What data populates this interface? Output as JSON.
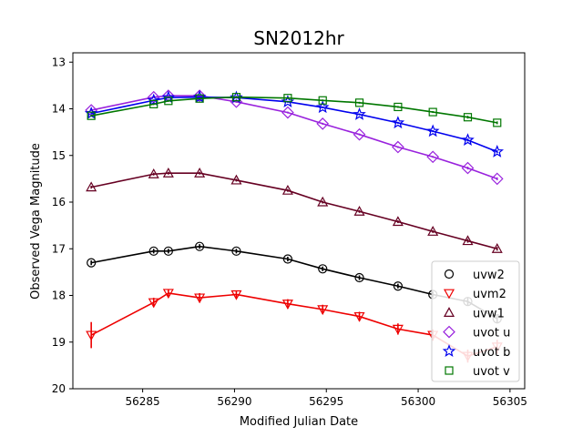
{
  "chart_data": {
    "type": "line",
    "title": "SN2012hr",
    "xlabel": "Modified Julian Date",
    "ylabel": "Observed Vega Magnitude",
    "xlim": [
      56281.2,
      56305.8
    ],
    "ylim": [
      20,
      12.8
    ],
    "y_inverted": true,
    "xticks": [
      56285,
      56290,
      56295,
      56300,
      56305
    ],
    "yticks": [
      13,
      14,
      15,
      16,
      17,
      18,
      19,
      20
    ],
    "grid": false,
    "legend_position": "bottom-right",
    "series": [
      {
        "name": "uvw2",
        "color": "#000000",
        "marker": "circle",
        "x": [
          56282.2,
          56285.6,
          56286.4,
          56288.1,
          56290.1,
          56292.9,
          56294.8,
          56296.8,
          56298.9,
          56300.8,
          56302.7,
          56304.3
        ],
        "y": [
          17.3,
          17.05,
          17.05,
          16.95,
          17.05,
          17.22,
          17.43,
          17.62,
          17.8,
          17.98,
          18.13,
          18.5
        ],
        "err": [
          0.05,
          0.05,
          0.05,
          0.05,
          0.05,
          0.05,
          0.05,
          0.05,
          0.05,
          0.06,
          0.08,
          0.1
        ]
      },
      {
        "name": "uvm2",
        "color": "#ee0000",
        "marker": "triangle-down",
        "x": [
          56282.2,
          56285.6,
          56286.4,
          56288.1,
          56290.1,
          56292.9,
          56294.8,
          56296.8,
          56298.9,
          56300.8,
          56302.7,
          56304.3
        ],
        "y": [
          18.85,
          18.15,
          17.95,
          18.05,
          17.98,
          18.18,
          18.3,
          18.45,
          18.72,
          18.85,
          19.3,
          19.1
        ],
        "err": [
          0.28,
          0.1,
          0.08,
          0.1,
          0.08,
          0.1,
          0.1,
          0.1,
          0.12,
          0.12,
          0.14,
          0.15
        ]
      },
      {
        "name": "uvw1",
        "color": "#660022",
        "marker": "triangle-up",
        "x": [
          56282.2,
          56285.6,
          56286.4,
          56288.1,
          56290.1,
          56292.9,
          56294.8,
          56296.8,
          56298.9,
          56300.8,
          56302.7,
          56304.3
        ],
        "y": [
          15.68,
          15.4,
          15.38,
          15.38,
          15.53,
          15.75,
          16.0,
          16.2,
          16.42,
          16.63,
          16.83,
          17.0
        ],
        "err": [
          0.03,
          0.03,
          0.03,
          0.03,
          0.03,
          0.03,
          0.03,
          0.03,
          0.03,
          0.03,
          0.04,
          0.04
        ]
      },
      {
        "name": "uvot u",
        "color": "#9922dd",
        "marker": "diamond",
        "x": [
          56282.2,
          56285.6,
          56286.4,
          56288.1,
          56290.1,
          56292.9,
          56294.8,
          56296.8,
          56298.9,
          56300.8,
          56302.7,
          56304.3
        ],
        "y": [
          14.03,
          13.75,
          13.72,
          13.72,
          13.85,
          14.08,
          14.32,
          14.55,
          14.82,
          15.03,
          15.27,
          15.5
        ],
        "err": [
          0.02,
          0.02,
          0.02,
          0.02,
          0.02,
          0.02,
          0.02,
          0.02,
          0.02,
          0.02,
          0.03,
          0.03
        ]
      },
      {
        "name": "uvot b",
        "color": "#0000ee",
        "marker": "star",
        "x": [
          56282.2,
          56285.6,
          56286.4,
          56288.1,
          56290.1,
          56292.9,
          56294.8,
          56296.8,
          56298.9,
          56300.8,
          56302.7,
          56304.3
        ],
        "y": [
          14.1,
          13.82,
          13.76,
          13.75,
          13.76,
          13.85,
          13.97,
          14.12,
          14.3,
          14.48,
          14.67,
          14.92
        ],
        "err": [
          0.02,
          0.02,
          0.02,
          0.02,
          0.02,
          0.02,
          0.02,
          0.02,
          0.02,
          0.02,
          0.03,
          0.03
        ]
      },
      {
        "name": "uvot v",
        "color": "#007700",
        "marker": "square",
        "x": [
          56282.2,
          56285.6,
          56286.4,
          56288.1,
          56290.1,
          56292.9,
          56294.8,
          56296.8,
          56298.9,
          56300.8,
          56302.7,
          56304.3
        ],
        "y": [
          14.15,
          13.9,
          13.83,
          13.78,
          13.75,
          13.77,
          13.82,
          13.87,
          13.96,
          14.07,
          14.18,
          14.3
        ],
        "err": [
          0.02,
          0.02,
          0.02,
          0.02,
          0.02,
          0.02,
          0.02,
          0.02,
          0.02,
          0.02,
          0.03,
          0.03
        ]
      }
    ]
  }
}
